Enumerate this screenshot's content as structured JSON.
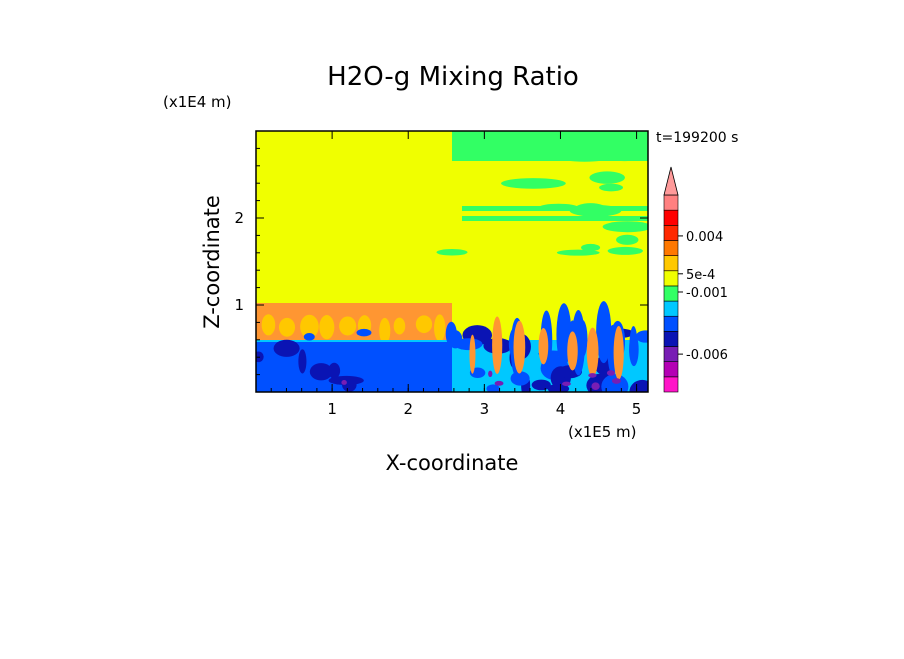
{
  "chart_data": {
    "type": "heatmap",
    "title": "H2O-g Mixing Ratio",
    "xlabel": "X-coordinate",
    "ylabel": "Z-coordinate",
    "x_unit": "(x1E5 m)",
    "y_unit": "(x1E4 m)",
    "xlim": [
      0,
      5.15
    ],
    "ylim": [
      0,
      3.0
    ],
    "x_ticks": [
      {
        "value": 1,
        "label": "1"
      },
      {
        "value": 2,
        "label": "2"
      },
      {
        "value": 3,
        "label": "3"
      },
      {
        "value": 4,
        "label": "4"
      },
      {
        "value": 5,
        "label": "5"
      }
    ],
    "y_ticks": [
      {
        "value": 1,
        "label": "1"
      },
      {
        "value": 2,
        "label": "2"
      }
    ],
    "time_label": "t=199200 s",
    "colorbar": {
      "colors": [
        "#ff14c8",
        "#b400b4",
        "#781eb4",
        "#0a14b4",
        "#0050ff",
        "#00c8ff",
        "#32ff64",
        "#f0ff00",
        "#ffc800",
        "#ff7800",
        "#ff2800",
        "#ff0000",
        "#ff8080"
      ],
      "extend_color": "#ff9a9a",
      "labels": [
        "-0.006",
        "-0.001",
        "5e-4",
        "0.004"
      ]
    },
    "colors": {
      "background_field": "#f0ff00",
      "orange_layer": "#ff9632",
      "light_orange": "#ffc800",
      "green": "#32ff64",
      "cyan": "#00c8ff",
      "blue": "#0050ff",
      "dark_blue": "#0a14b4",
      "purple": "#781eb4"
    }
  }
}
